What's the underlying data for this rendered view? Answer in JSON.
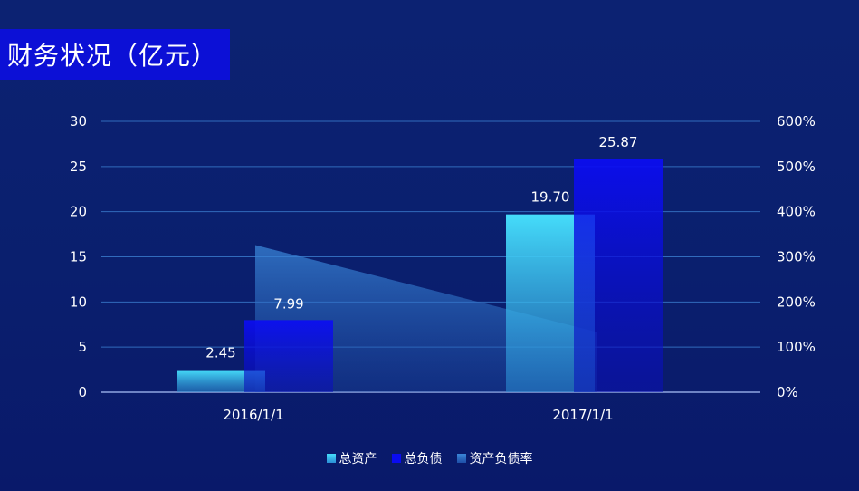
{
  "title": "财务状况（亿元）",
  "chart_data": {
    "type": "bar",
    "categories": [
      "2016/1/1",
      "2017/1/1"
    ],
    "series": [
      {
        "name": "总资产",
        "type": "bar",
        "axis": "left",
        "values": [
          2.45,
          19.7
        ],
        "labels": [
          "2.45",
          "19.70"
        ],
        "color": "#3fd0f5"
      },
      {
        "name": "总负债",
        "type": "bar",
        "axis": "left",
        "values": [
          7.99,
          25.87
        ],
        "labels": [
          "7.99",
          "25.87"
        ],
        "color": "#0a0cf0"
      },
      {
        "name": "资产负债率",
        "type": "area",
        "axis": "right",
        "values": [
          326,
          133
        ],
        "color": "#2f6fc7"
      }
    ],
    "y_left": {
      "min": 0,
      "max": 30,
      "ticks": [
        "0",
        "5",
        "10",
        "15",
        "20",
        "25",
        "30"
      ]
    },
    "y_right": {
      "min": 0,
      "max": 600,
      "ticks": [
        "0%",
        "100%",
        "200%",
        "300%",
        "400%",
        "500%",
        "600%"
      ]
    },
    "grid": true,
    "legend_position": "bottom"
  }
}
